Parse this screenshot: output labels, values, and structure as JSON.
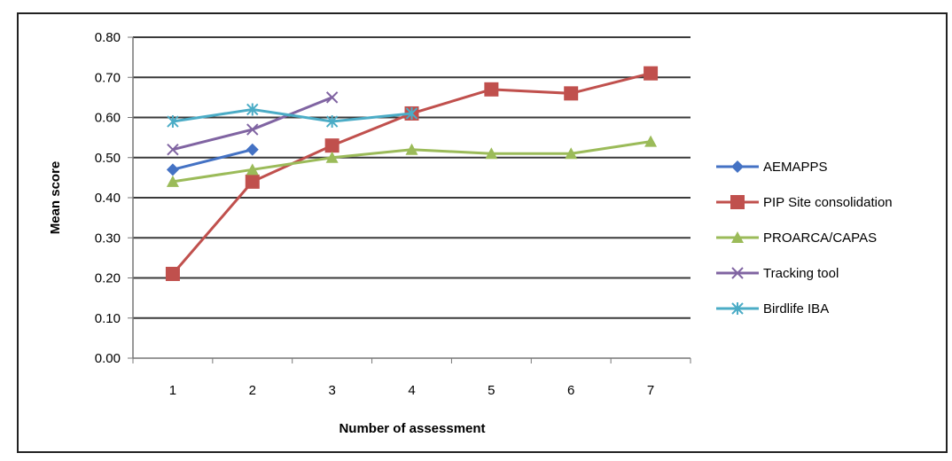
{
  "chart_data": {
    "type": "line",
    "title": "",
    "xlabel": "Number of assessment",
    "ylabel": "Mean score",
    "categories": [
      "1",
      "2",
      "3",
      "4",
      "5",
      "6",
      "7"
    ],
    "ylim": [
      0,
      0.8
    ],
    "yticks": [
      "0.00",
      "0.10",
      "0.20",
      "0.30",
      "0.40",
      "0.50",
      "0.60",
      "0.70",
      "0.80"
    ],
    "grid": true,
    "legend_position": "right",
    "series": [
      {
        "name": "AEMAPPS",
        "color": "#4472c4",
        "marker": "diamond",
        "values": [
          0.47,
          0.52,
          null,
          null,
          null,
          null,
          null
        ]
      },
      {
        "name": "PIP Site consolidation",
        "color": "#c0504d",
        "marker": "square",
        "values": [
          0.21,
          0.44,
          0.53,
          0.61,
          0.67,
          0.66,
          0.71
        ]
      },
      {
        "name": "PROARCA/CAPAS",
        "color": "#9bbb59",
        "marker": "triangle",
        "values": [
          0.44,
          0.47,
          0.5,
          0.52,
          0.51,
          0.51,
          0.54
        ]
      },
      {
        "name": "Tracking tool",
        "color": "#8064a2",
        "marker": "x",
        "values": [
          0.52,
          0.57,
          0.65,
          null,
          null,
          null,
          null
        ]
      },
      {
        "name": "Birdlife IBA",
        "color": "#4bacc6",
        "marker": "star",
        "values": [
          0.59,
          0.62,
          0.59,
          0.61,
          null,
          null,
          null
        ]
      }
    ]
  }
}
